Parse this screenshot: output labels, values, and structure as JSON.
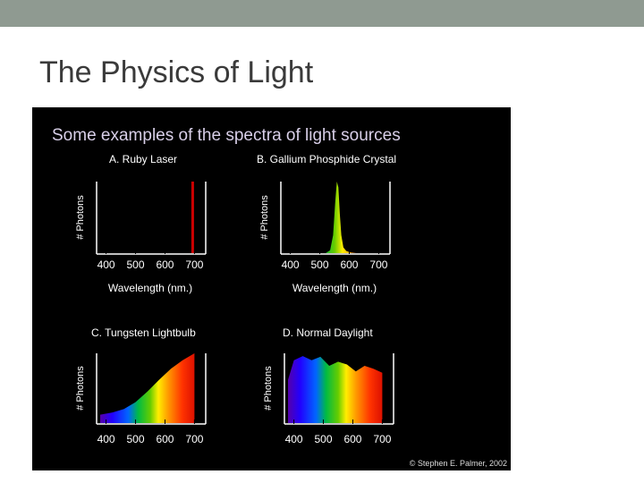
{
  "slide": {
    "title": "The Physics of Light",
    "topbar_color": "#8f9a91"
  },
  "figure": {
    "heading": "Some examples of the spectra of light sources",
    "copyright": "© Stephen E. Palmer, 2002",
    "heading_color": "#d8cfe8"
  },
  "chart_data": [
    {
      "type": "line",
      "title": "A.  Ruby Laser",
      "xlabel": "Wavelength (nm.)",
      "ylabel": "# Photons",
      "xticks": [
        400,
        500,
        600,
        700
      ],
      "xlim": [
        380,
        720
      ],
      "series": [
        {
          "x": [
            694,
            694
          ],
          "y": [
            0,
            1
          ],
          "color": "#cc0000"
        }
      ]
    },
    {
      "type": "area",
      "title": "B. Gallium Phosphide Crystal",
      "xlabel": "Wavelength (nm.)",
      "ylabel": "# Photons",
      "xticks": [
        400,
        500,
        600,
        700
      ],
      "xlim": [
        380,
        720
      ],
      "series": [
        {
          "x": [
            520,
            535,
            545,
            552,
            558,
            563,
            568,
            573,
            580,
            590,
            605,
            625
          ],
          "y": [
            0,
            0.04,
            0.25,
            0.7,
            1.0,
            0.92,
            0.55,
            0.25,
            0.08,
            0.03,
            0.01,
            0
          ]
        }
      ]
    },
    {
      "type": "area",
      "title": "C.  Tungsten Lightbulb",
      "xlabel": "",
      "ylabel": "# Photons",
      "xticks": [
        400,
        500,
        600,
        700
      ],
      "xlim": [
        380,
        720
      ],
      "series": [
        {
          "x": [
            380,
            420,
            460,
            500,
            540,
            580,
            620,
            660,
            700
          ],
          "y": [
            0.12,
            0.15,
            0.2,
            0.3,
            0.45,
            0.62,
            0.78,
            0.9,
            1.0
          ]
        }
      ]
    },
    {
      "type": "area",
      "title": "D.  Normal Daylight",
      "xlabel": "",
      "ylabel": "# Photons",
      "xticks": [
        400,
        500,
        600,
        700
      ],
      "xlim": [
        380,
        720
      ],
      "series": [
        {
          "x": [
            380,
            400,
            430,
            460,
            490,
            520,
            550,
            580,
            610,
            640,
            670,
            700
          ],
          "y": [
            0.62,
            0.9,
            0.96,
            0.9,
            0.95,
            0.82,
            0.88,
            0.84,
            0.74,
            0.82,
            0.78,
            0.72
          ]
        }
      ]
    }
  ]
}
